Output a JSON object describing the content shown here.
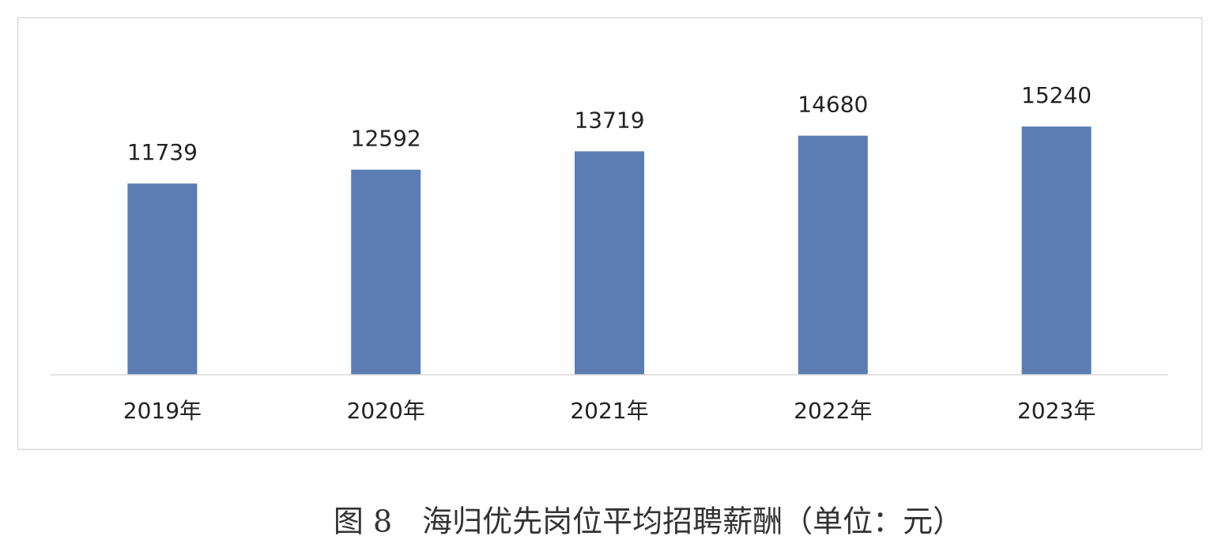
{
  "chart_data": {
    "type": "bar",
    "caption": "图 8　海归优先岗位平均招聘薪酬（单位：元）",
    "categories": [
      "2019年",
      "2020年",
      "2021年",
      "2022年",
      "2023年"
    ],
    "values": [
      11739,
      12592,
      13719,
      14680,
      15240
    ],
    "color": "#5b7db4",
    "ylim": [
      0,
      20000
    ],
    "grid": false
  }
}
